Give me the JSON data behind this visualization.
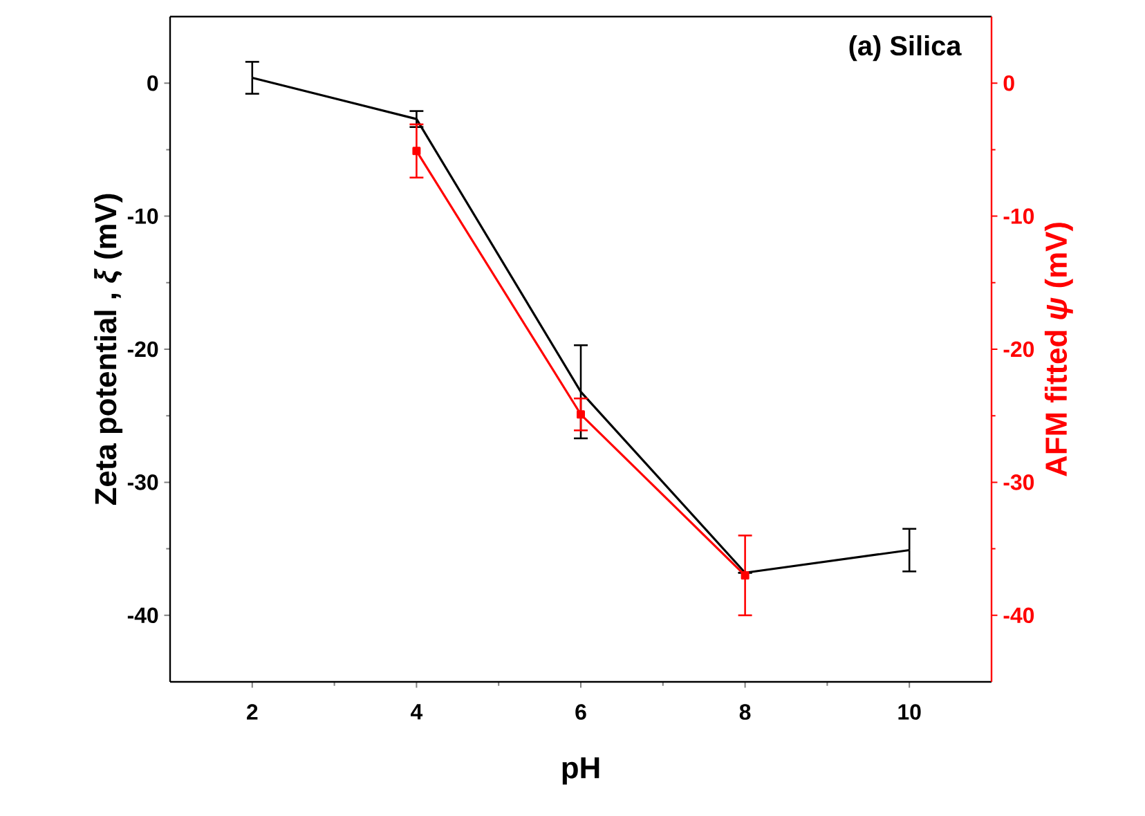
{
  "chart_data": {
    "type": "line",
    "xlabel": "pH",
    "ylabel": "Zeta potential , *ξ* (mV)",
    "y2label": "AFM fitted *ψ* (mV)",
    "annotations": [
      "(a) Silica"
    ],
    "xlim": [
      1,
      11
    ],
    "xticks": [
      2,
      4,
      6,
      8,
      10
    ],
    "ylim": [
      -45,
      5
    ],
    "yticks": [
      -40,
      -30,
      -20,
      -10,
      0
    ],
    "y2lim": [
      -45,
      5
    ],
    "y2ticks": [
      -40,
      -30,
      -20,
      -10,
      0
    ],
    "series": [
      {
        "color": "#000000",
        "x": [
          2,
          4,
          6,
          8,
          10
        ],
        "values": [
          0.4,
          -2.7,
          -23.2,
          -36.8,
          -35.1
        ],
        "errors": [
          1.2,
          0.6,
          3.5,
          null,
          1.6
        ],
        "marker": "none"
      },
      {
        "color": "#ff0000",
        "axis": "y2",
        "x": [
          4,
          6,
          8
        ],
        "values": [
          -5.1,
          -24.9,
          -37.0
        ],
        "errors": [
          2.0,
          1.2,
          3.0
        ],
        "marker": "square"
      }
    ]
  }
}
